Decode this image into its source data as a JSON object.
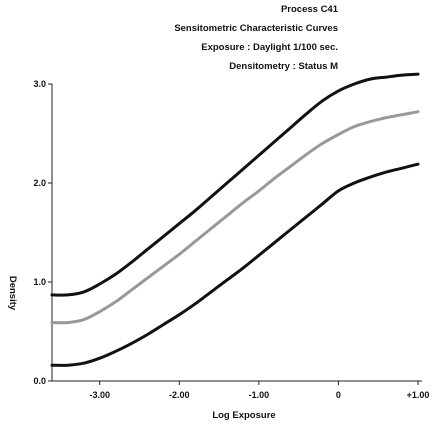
{
  "chart_data": {
    "type": "line",
    "title_lines": [
      "Process C41",
      "Sensitometric Characteristic Curves",
      "Exposure : Daylight 1/100 sec.",
      "Densitometry : Status M"
    ],
    "xlabel": "Log Exposure",
    "ylabel": "Density",
    "xlim": [
      -3.6,
      1.0
    ],
    "ylim": [
      0.0,
      3.0
    ],
    "x_ticks": [
      {
        "value": -3.0,
        "label": "-3.00"
      },
      {
        "value": -2.0,
        "label": "-2.00"
      },
      {
        "value": -1.0,
        "label": "-1.00"
      },
      {
        "value": 0.0,
        "label": "0"
      },
      {
        "value": 1.0,
        "label": "+1.00"
      }
    ],
    "y_ticks": [
      {
        "value": 0.0,
        "label": "0.0"
      },
      {
        "value": 1.0,
        "label": "1.0"
      },
      {
        "value": 2.0,
        "label": "2.0"
      },
      {
        "value": 3.0,
        "label": "3.0"
      }
    ],
    "grid": false,
    "series": [
      {
        "color": "#111111",
        "x": [
          -3.6,
          -3.4,
          -3.2,
          -3.0,
          -2.8,
          -2.6,
          -2.4,
          -2.2,
          -2.0,
          -1.8,
          -1.6,
          -1.4,
          -1.2,
          -1.0,
          -0.8,
          -0.6,
          -0.4,
          -0.2,
          0.0,
          0.2,
          0.4,
          0.6,
          0.8,
          1.0
        ],
        "y": [
          0.87,
          0.87,
          0.9,
          0.98,
          1.08,
          1.2,
          1.33,
          1.46,
          1.59,
          1.72,
          1.86,
          2.0,
          2.14,
          2.28,
          2.42,
          2.56,
          2.7,
          2.83,
          2.93,
          3.0,
          3.05,
          3.07,
          3.09,
          3.1
        ]
      },
      {
        "color": "#999999",
        "x": [
          -3.6,
          -3.4,
          -3.2,
          -3.0,
          -2.8,
          -2.6,
          -2.4,
          -2.2,
          -2.0,
          -1.8,
          -1.6,
          -1.4,
          -1.2,
          -1.0,
          -0.8,
          -0.6,
          -0.4,
          -0.2,
          0.0,
          0.2,
          0.4,
          0.6,
          0.8,
          1.0
        ],
        "y": [
          0.59,
          0.59,
          0.62,
          0.7,
          0.8,
          0.92,
          1.04,
          1.16,
          1.28,
          1.41,
          1.54,
          1.67,
          1.8,
          1.92,
          2.05,
          2.17,
          2.29,
          2.4,
          2.49,
          2.57,
          2.62,
          2.66,
          2.69,
          2.72
        ]
      },
      {
        "color": "#111111",
        "x": [
          -3.6,
          -3.4,
          -3.2,
          -3.0,
          -2.8,
          -2.6,
          -2.4,
          -2.2,
          -2.0,
          -1.8,
          -1.6,
          -1.4,
          -1.2,
          -1.0,
          -0.8,
          -0.6,
          -0.4,
          -0.2,
          0.0,
          0.2,
          0.4,
          0.6,
          0.8,
          1.0
        ],
        "y": [
          0.16,
          0.16,
          0.18,
          0.23,
          0.3,
          0.38,
          0.47,
          0.57,
          0.67,
          0.78,
          0.9,
          1.02,
          1.14,
          1.27,
          1.4,
          1.53,
          1.66,
          1.79,
          1.92,
          2.0,
          2.06,
          2.11,
          2.15,
          2.19
        ]
      }
    ]
  }
}
